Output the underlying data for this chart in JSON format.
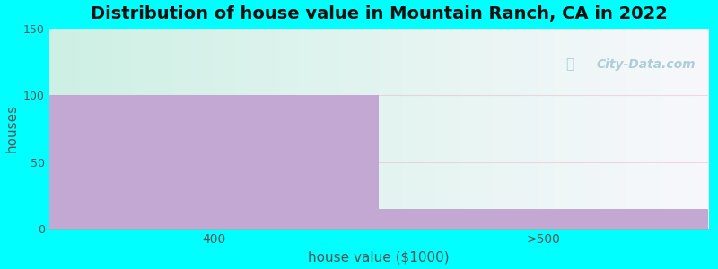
{
  "title": "Distribution of house value in Mountain Ranch, CA in 2022",
  "xlabel": "house value ($1000)",
  "ylabel": "houses",
  "categories": [
    "400",
    ">500"
  ],
  "values": [
    100,
    15
  ],
  "ylim": [
    0,
    150
  ],
  "yticks": [
    0,
    50,
    100,
    150
  ],
  "bar_color": "#c4a8d4",
  "outer_bg": "#00ffff",
  "watermark": "City-Data.com",
  "title_fontsize": 14,
  "label_fontsize": 11,
  "bg_left": "#d4f0e8",
  "bg_right": "#f5f5f8",
  "grid_color": "#e8b8c8",
  "grid_alpha": 0.5
}
